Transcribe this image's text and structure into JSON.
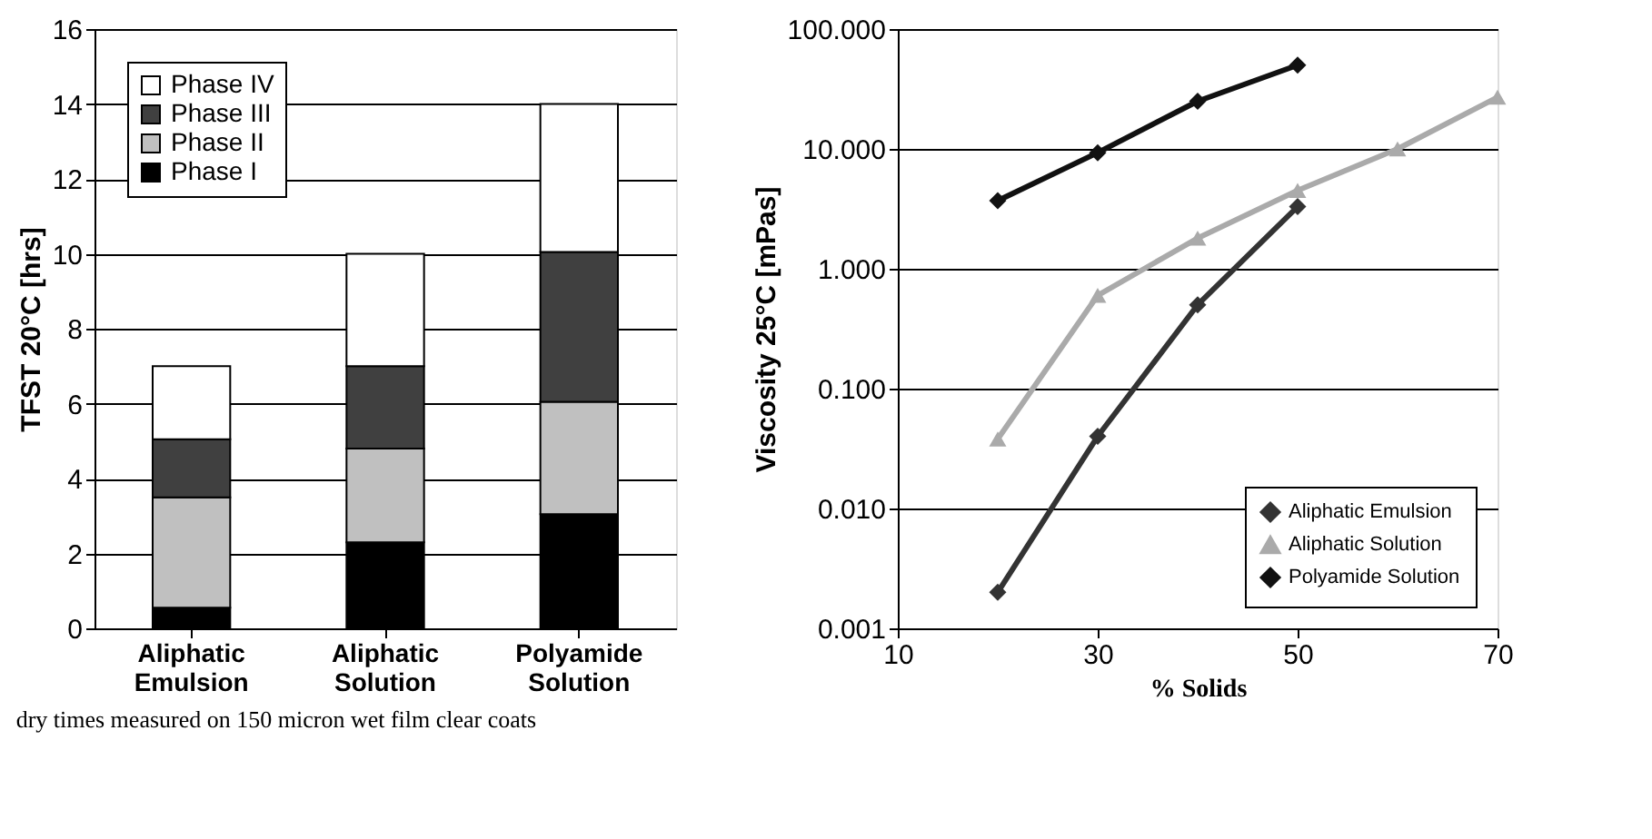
{
  "chart_data": [
    {
      "type": "bar",
      "stacked": true,
      "ylabel": "TFST 20°C [hrs]",
      "categories": [
        "Aliphatic Emulsion",
        "Aliphatic Solution",
        "Polyamide Solution"
      ],
      "series": [
        {
          "name": "Phase I",
          "color": "#000000",
          "values": [
            0.55,
            2.3,
            3.05
          ]
        },
        {
          "name": "Phase II",
          "color": "#c0c0c0",
          "values": [
            2.95,
            2.5,
            3.0
          ]
        },
        {
          "name": "Phase III",
          "color": "#404040",
          "values": [
            1.55,
            2.2,
            4.0
          ]
        },
        {
          "name": "Phase IV",
          "color": "#ffffff",
          "values": [
            1.95,
            3.0,
            3.95
          ]
        }
      ],
      "ylim": [
        0,
        16
      ],
      "yticks": [
        0,
        2,
        4,
        6,
        8,
        10,
        12,
        14,
        16
      ],
      "grid": "y",
      "legend": "top left",
      "annotations": [
        "dry times measured on 150 micron wet film clear coats"
      ]
    },
    {
      "type": "line",
      "xlabel": "% Solids",
      "ylabel": "Viscosity 25°C [mPas]",
      "log": "y",
      "series": [
        {
          "name": "Aliphatic Emulsion",
          "color": "#333333",
          "marker": "diamond",
          "x": [
            20,
            30,
            40,
            50
          ],
          "values": [
            0.002,
            0.04,
            0.5,
            3.3
          ]
        },
        {
          "name": "Aliphatic Solution",
          "color": "#aaaaaa",
          "marker": "triangle",
          "x": [
            20,
            30,
            40,
            50,
            60,
            70
          ],
          "values": [
            0.038,
            0.6,
            1.8,
            4.5,
            10,
            27
          ]
        },
        {
          "name": "Polyamide Solution",
          "color": "#111111",
          "marker": "diamond",
          "x": [
            20,
            30,
            40,
            50
          ],
          "values": [
            3.7,
            9.3,
            25,
            50
          ]
        }
      ],
      "xlim": [
        10,
        70
      ],
      "xticks": [
        10,
        30,
        50,
        70
      ],
      "ylim": [
        0.001,
        100
      ],
      "yticks": [
        {
          "value": 0.001,
          "label": "0.001"
        },
        {
          "value": 0.01,
          "label": "0.010"
        },
        {
          "value": 0.1,
          "label": "0.100"
        },
        {
          "value": 1,
          "label": "1.000"
        },
        {
          "value": 10,
          "label": "10.000"
        },
        {
          "value": 100,
          "label": "100.000"
        }
      ],
      "grid": "y",
      "legend": "bottom right",
      "line_style": "solid"
    }
  ]
}
